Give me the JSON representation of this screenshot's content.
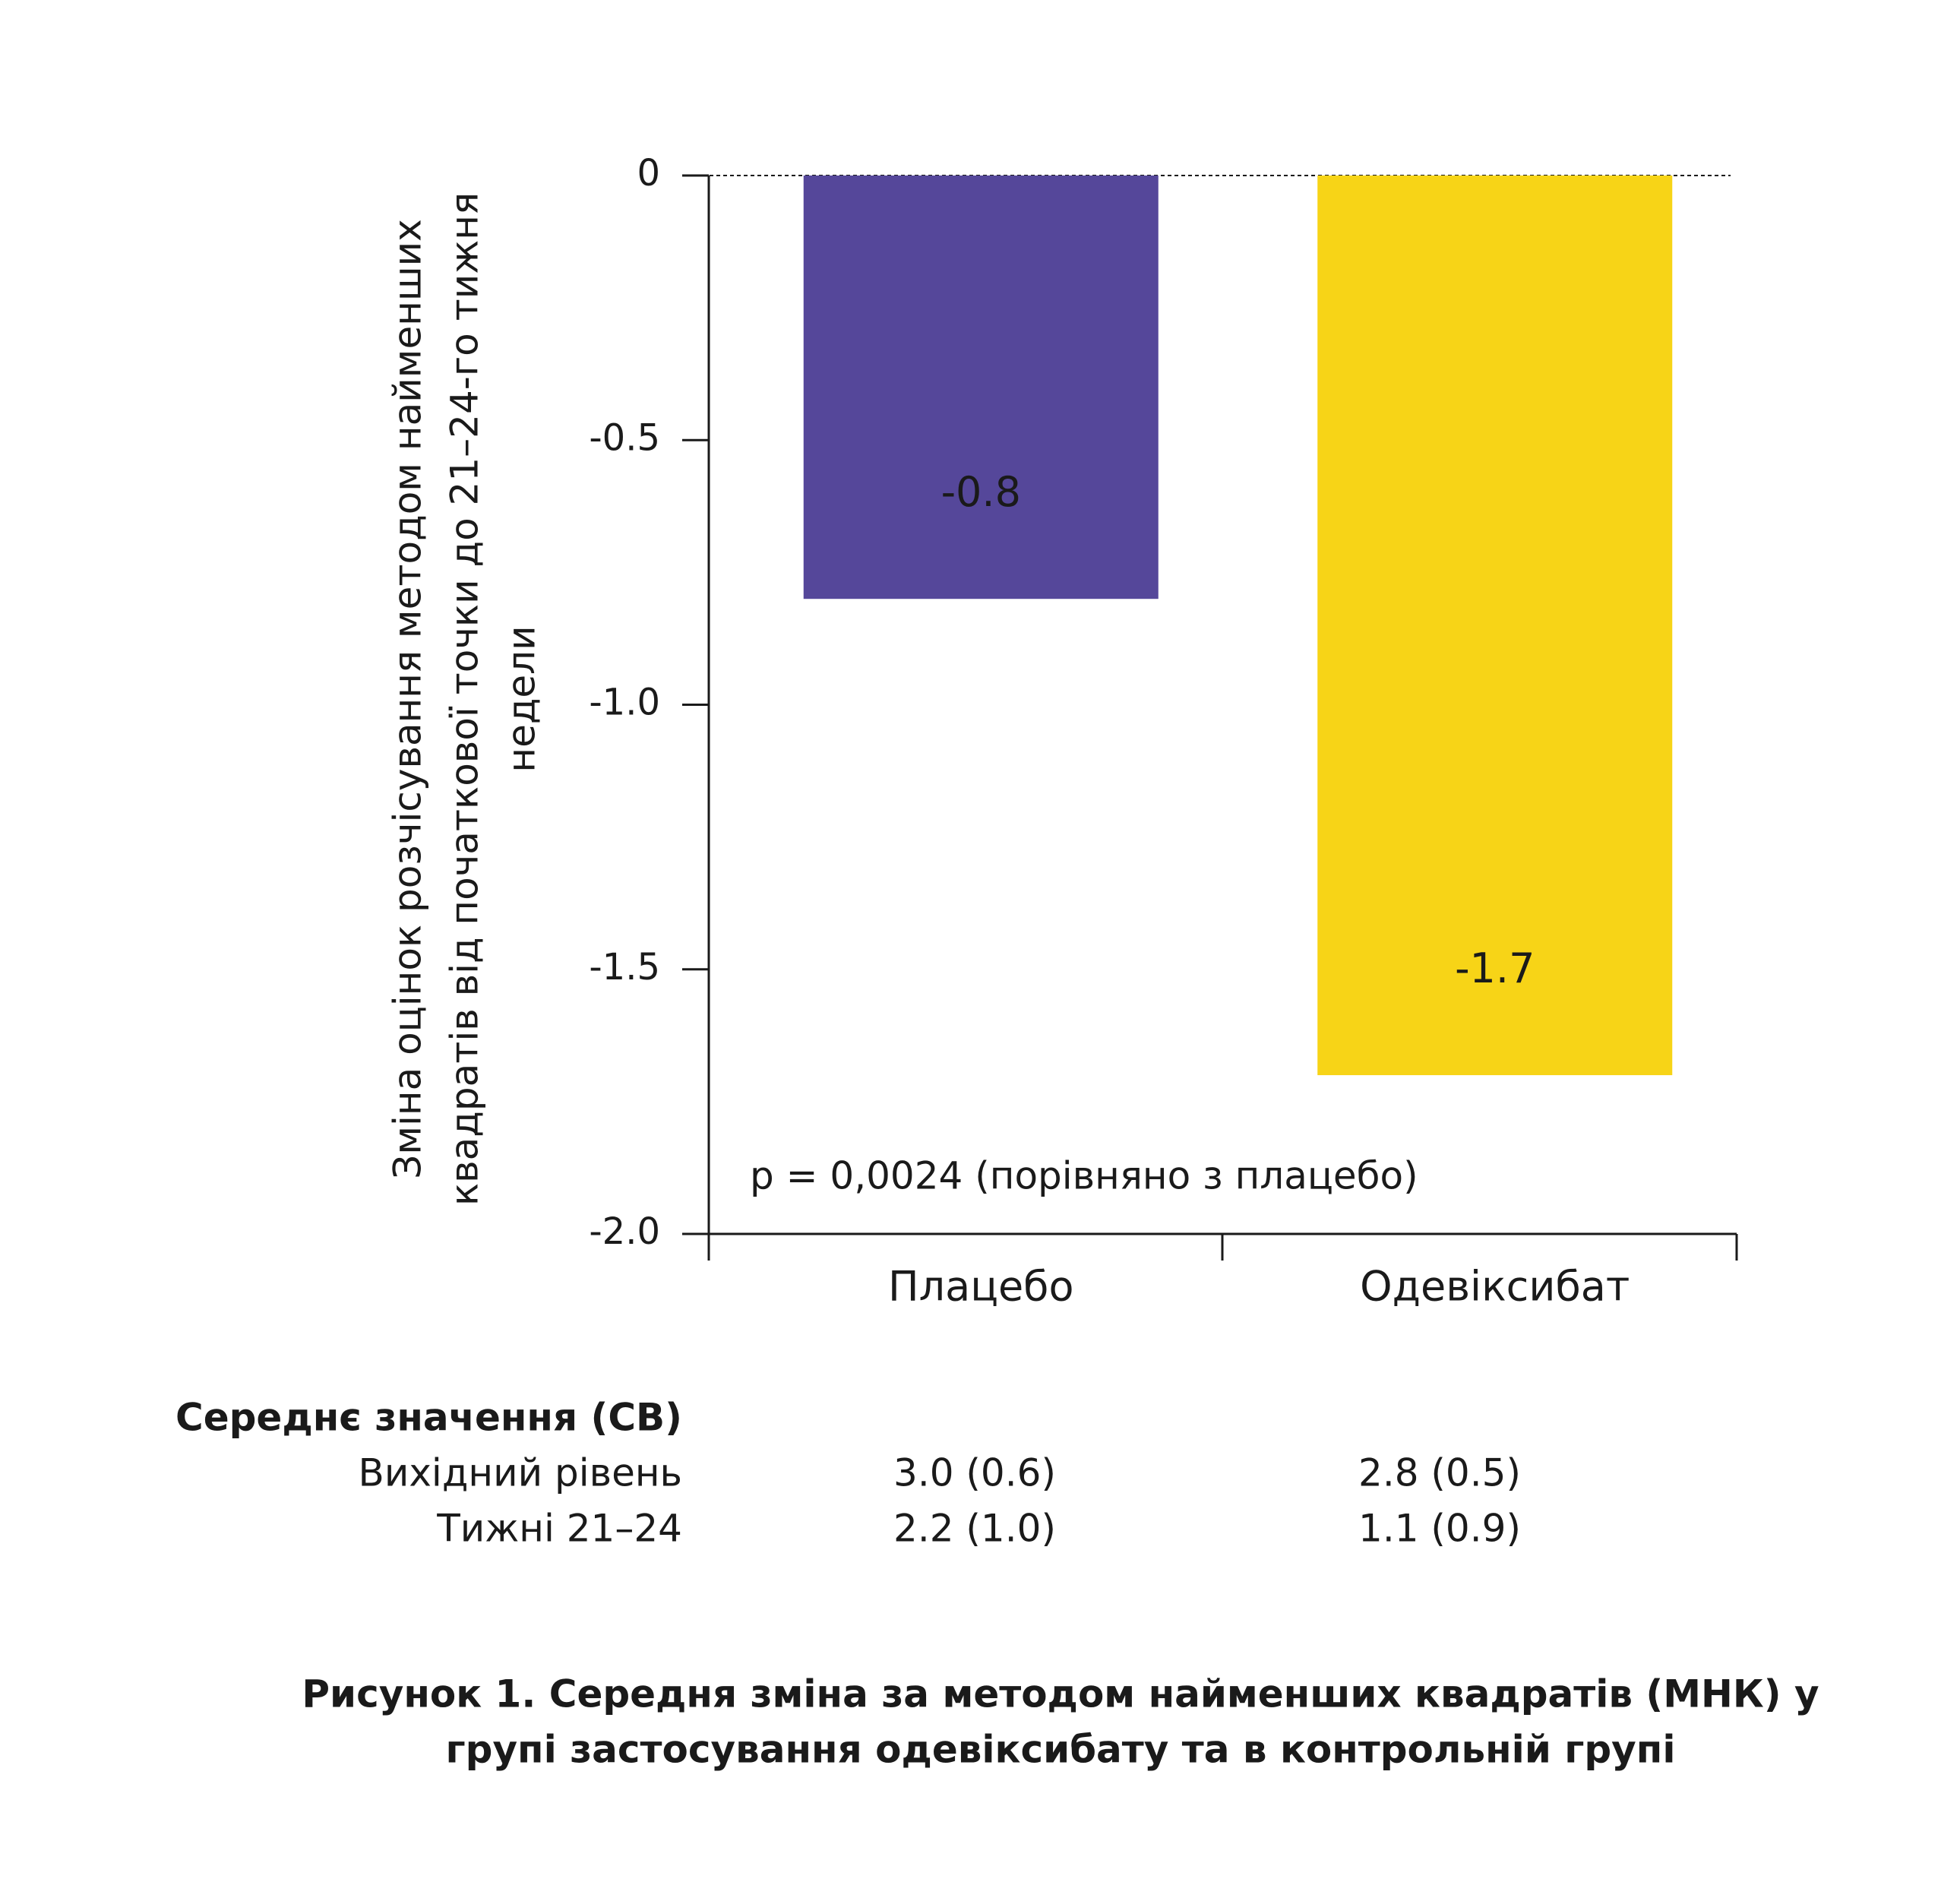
{
  "chart_data": {
    "type": "bar",
    "y_label": [
      "Зміна оцінок розчісування методом найменших",
      "квадратів від початкової точки до 21–24-го тижня",
      "недели"
    ],
    "categories": [
      "Плацебо",
      "Одевіксибат"
    ],
    "values": [
      -0.8,
      -1.7
    ],
    "colors": [
      "#55479a",
      "#f7d417"
    ],
    "label_colors": [
      "#ffffff",
      "#1a1a1a"
    ],
    "ylim": [
      -2.0,
      0
    ],
    "yticks": [
      0,
      -0.5,
      {
        "value": -1.0,
        "label": "-1.0"
      },
      -1.5,
      {
        "value": -2.0,
        "label": "-2.0"
      }
    ],
    "annotation": "p = 0,0024 (порівняно з плацебо)"
  },
  "table": {
    "title": "Середнє значення (СВ)",
    "rows": [
      [
        "Вихідний рівень",
        "3.0 (0.6)",
        "2.8 (0.5)"
      ],
      [
        "Тижні 21–24",
        "2.2 (1.0)",
        "1.1 (0.9)"
      ]
    ]
  },
  "caption": [
    "Рисунок 1. Середня зміна за методом найменших квадратів (МНК) у",
    "групі застосування одевіксибату та в контрольній групі"
  ]
}
